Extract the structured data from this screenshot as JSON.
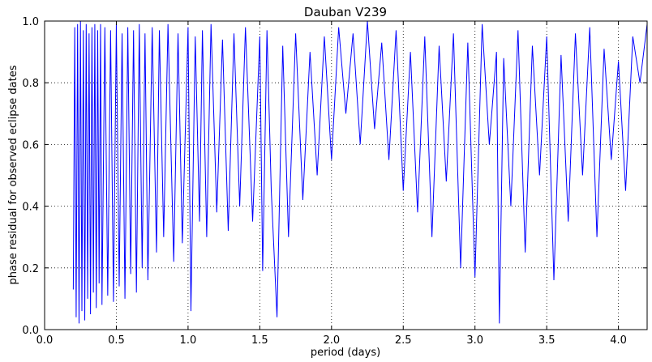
{
  "chart_data": {
    "type": "line",
    "title": "Dauban V239",
    "xlabel": "period (days)",
    "ylabel": "phase residual for observed eclipse dates",
    "xlim": [
      0.0,
      4.2
    ],
    "ylim": [
      0.0,
      1.0
    ],
    "xticks": [
      "0.0",
      "0.5",
      "1.0",
      "1.5",
      "2.0",
      "2.5",
      "3.0",
      "3.5",
      "4.0"
    ],
    "yticks": [
      "0.0",
      "0.2",
      "0.4",
      "0.6",
      "0.8",
      "1.0"
    ],
    "grid": true,
    "line_color": "#0000ff",
    "series": [
      {
        "x": [
          0.2,
          0.21,
          0.22,
          0.23,
          0.24,
          0.25,
          0.26,
          0.27,
          0.28,
          0.29,
          0.3,
          0.31,
          0.32,
          0.33,
          0.34,
          0.35,
          0.36,
          0.37,
          0.38,
          0.39,
          0.4,
          0.42,
          0.44,
          0.46,
          0.48,
          0.5,
          0.52,
          0.54,
          0.56,
          0.58,
          0.6,
          0.62,
          0.64,
          0.66,
          0.68,
          0.7,
          0.72,
          0.75,
          0.78,
          0.8,
          0.83,
          0.86,
          0.9,
          0.93,
          0.96,
          1.0,
          1.02,
          1.05,
          1.08,
          1.1,
          1.13,
          1.16,
          1.2,
          1.24,
          1.28,
          1.32,
          1.36,
          1.4,
          1.45,
          1.5,
          1.52,
          1.55,
          1.58,
          1.62,
          1.66,
          1.7,
          1.75,
          1.8,
          1.85,
          1.9,
          1.95,
          2.0,
          2.05,
          2.1,
          2.15,
          2.2,
          2.25,
          2.3,
          2.35,
          2.4,
          2.45,
          2.5,
          2.55,
          2.6,
          2.65,
          2.7,
          2.75,
          2.8,
          2.85,
          2.9,
          2.95,
          3.0,
          3.05,
          3.1,
          3.15,
          3.17,
          3.2,
          3.25,
          3.3,
          3.35,
          3.4,
          3.45,
          3.5,
          3.55,
          3.6,
          3.65,
          3.7,
          3.75,
          3.8,
          3.85,
          3.9,
          3.95,
          4.0,
          4.05,
          4.1,
          4.15,
          4.2
        ],
        "y": [
          0.13,
          0.98,
          0.04,
          0.99,
          0.02,
          1.0,
          0.06,
          0.97,
          0.03,
          0.99,
          0.1,
          0.96,
          0.05,
          0.98,
          0.12,
          0.99,
          0.07,
          0.97,
          0.15,
          0.99,
          0.08,
          0.98,
          0.11,
          0.97,
          0.09,
          0.99,
          0.14,
          0.96,
          0.1,
          0.98,
          0.18,
          0.97,
          0.12,
          0.99,
          0.2,
          0.96,
          0.16,
          0.98,
          0.25,
          0.97,
          0.3,
          0.99,
          0.22,
          0.96,
          0.28,
          0.98,
          0.06,
          0.95,
          0.35,
          0.97,
          0.3,
          0.99,
          0.38,
          0.94,
          0.32,
          0.96,
          0.4,
          0.98,
          0.35,
          0.95,
          0.19,
          0.97,
          0.45,
          0.04,
          0.92,
          0.3,
          0.96,
          0.42,
          0.9,
          0.5,
          0.95,
          0.55,
          0.98,
          0.7,
          0.96,
          0.6,
          1.0,
          0.65,
          0.93,
          0.55,
          0.97,
          0.45,
          0.9,
          0.38,
          0.95,
          0.3,
          0.92,
          0.48,
          0.96,
          0.2,
          0.93,
          0.17,
          0.99,
          0.6,
          0.9,
          0.02,
          0.88,
          0.4,
          0.97,
          0.25,
          0.92,
          0.5,
          0.95,
          0.16,
          0.89,
          0.35,
          0.96,
          0.5,
          0.98,
          0.3,
          0.91,
          0.55,
          0.87,
          0.45,
          0.95,
          0.8,
          0.99
        ]
      }
    ]
  }
}
